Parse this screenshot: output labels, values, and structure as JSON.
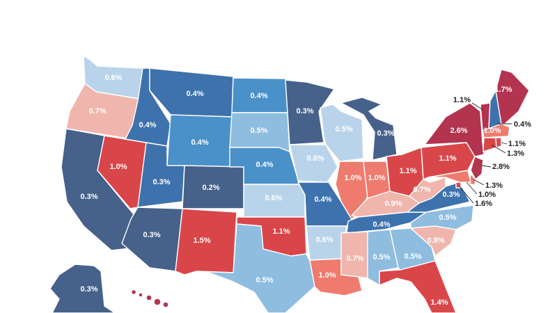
{
  "colors": {
    "dark_blue": "#46618a",
    "mid_blue": "#3e72ad",
    "sky_blue": "#4a90c9",
    "light_blue": "#8fbde0",
    "pale_blue": "#b9d4ea",
    "dark_red": "#b3344f",
    "red": "#d9464a",
    "salmon": "#ee7b6d",
    "pink": "#f0b6ad"
  },
  "states": {
    "WA": {
      "value": "0.6%",
      "color": "pale_blue"
    },
    "OR": {
      "value": "0.7%",
      "color": "pink"
    },
    "CA": {
      "value": "0.3%",
      "color": "dark_blue"
    },
    "NV": {
      "value": "1.0%",
      "color": "red"
    },
    "ID": {
      "value": "0.4%",
      "color": "mid_blue"
    },
    "MT": {
      "value": "0.4%",
      "color": "mid_blue"
    },
    "WY": {
      "value": "0.4%",
      "color": "sky_blue"
    },
    "UT": {
      "value": "0.3%",
      "color": "mid_blue"
    },
    "AZ": {
      "value": "0.3%",
      "color": "dark_blue"
    },
    "CO": {
      "value": "0.2%",
      "color": "dark_blue"
    },
    "NM": {
      "value": "1.5%",
      "color": "red"
    },
    "ND": {
      "value": "0.4%",
      "color": "sky_blue"
    },
    "SD": {
      "value": "0.5%",
      "color": "light_blue"
    },
    "NE": {
      "value": "0.4%",
      "color": "sky_blue"
    },
    "KS": {
      "value": "0.6%",
      "color": "pale_blue"
    },
    "OK": {
      "value": "1.1%",
      "color": "red"
    },
    "TX": {
      "value": "0.5%",
      "color": "light_blue"
    },
    "MN": {
      "value": "0.3%",
      "color": "dark_blue"
    },
    "IA": {
      "value": "0.6%",
      "color": "pale_blue"
    },
    "MO": {
      "value": "0.4%",
      "color": "mid_blue"
    },
    "AR": {
      "value": "0.6%",
      "color": "pale_blue"
    },
    "LA": {
      "value": "1.0%",
      "color": "salmon"
    },
    "WI": {
      "value": "0.5%",
      "color": "pale_blue"
    },
    "MI": {
      "value": "0.3%",
      "color": "dark_blue"
    },
    "IL": {
      "value": "1.0%",
      "color": "salmon"
    },
    "IN": {
      "value": "1.0%",
      "color": "salmon"
    },
    "OH": {
      "value": "1.1%",
      "color": "red"
    },
    "KY": {
      "value": "0.9%",
      "color": "pink"
    },
    "TN": {
      "value": "0.4%",
      "color": "mid_blue"
    },
    "MS": {
      "value": "0.7%",
      "color": "pink"
    },
    "AL": {
      "value": "0.5%",
      "color": "light_blue"
    },
    "GA": {
      "value": "0.5%",
      "color": "light_blue"
    },
    "FL": {
      "value": "1.4%",
      "color": "red"
    },
    "SC": {
      "value": "0.8%",
      "color": "pink"
    },
    "NC": {
      "value": "0.5%",
      "color": "light_blue"
    },
    "VA": {
      "value": "0.3%",
      "color": "mid_blue"
    },
    "WV": {
      "value": "0.7%",
      "color": "pink"
    },
    "PA": {
      "value": "1.1%",
      "color": "red"
    },
    "NY": {
      "value": "2.6%",
      "color": "dark_red"
    },
    "VT": {
      "value": "1.1%",
      "color": "dark_red"
    },
    "NH": {
      "value": "0.4%",
      "color": "mid_blue"
    },
    "ME": {
      "value": "1.7%",
      "color": "dark_red"
    },
    "MA": {
      "value": "1.0%",
      "color": "salmon"
    },
    "RI": {
      "value": "1.1%",
      "color": "red"
    },
    "CT": {
      "value": "1.3%",
      "color": "red"
    },
    "NJ": {
      "value": "2.8%",
      "color": "dark_red"
    },
    "DE": {
      "value": "1.3%",
      "color": "salmon"
    },
    "MD": {
      "value": "1.0%",
      "color": "salmon"
    },
    "DC": {
      "value": "1.6%",
      "color": "red"
    },
    "AK": {
      "value": "0.3%",
      "color": "dark_blue"
    },
    "HI": {
      "value": "",
      "color": "dark_red"
    }
  }
}
